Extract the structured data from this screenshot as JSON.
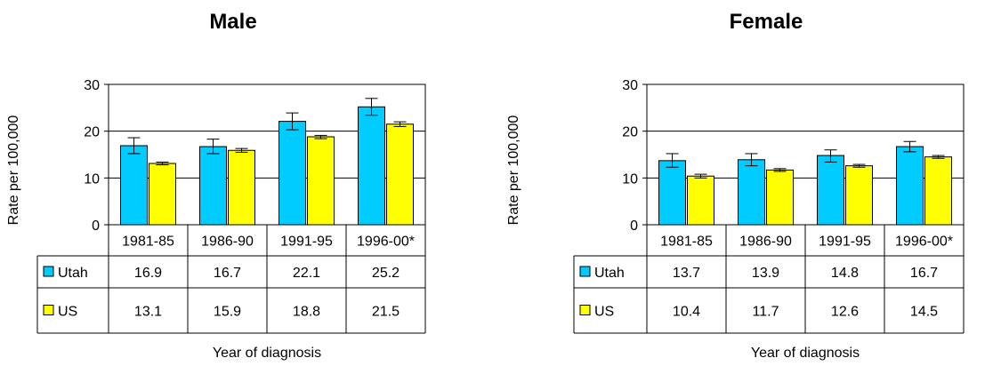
{
  "chart_data": [
    {
      "type": "bar",
      "title": "Male",
      "ylabel": "Rate per 100,000",
      "xlabel": "Year of diagnosis",
      "categories": [
        "1981-85",
        "1986-90",
        "1991-95",
        "1996-00*"
      ],
      "ylim": [
        0,
        30
      ],
      "yticks": [
        0,
        10,
        20,
        30
      ],
      "series": [
        {
          "name": "Utah",
          "color": "#00ccff",
          "values": [
            16.9,
            16.7,
            22.1,
            25.2
          ],
          "error_low": [
            15.2,
            15.2,
            20.3,
            23.4
          ],
          "error_high": [
            18.6,
            18.3,
            23.9,
            27.0
          ]
        },
        {
          "name": "US",
          "color": "#ffff00",
          "values": [
            13.1,
            15.9,
            18.8,
            21.5
          ],
          "error_low": [
            12.8,
            15.5,
            18.4,
            21.0
          ],
          "error_high": [
            13.4,
            16.3,
            19.1,
            22.0
          ]
        }
      ],
      "table": [
        {
          "label": "Utah",
          "cells": [
            "16.9",
            "16.7",
            "22.1",
            "25.2"
          ]
        },
        {
          "label": "US",
          "cells": [
            "13.1",
            "15.9",
            "18.8",
            "21.5"
          ]
        }
      ]
    },
    {
      "type": "bar",
      "title": "Female",
      "ylabel": "Rate per 100,000",
      "xlabel": "Year of diagnosis",
      "categories": [
        "1981-85",
        "1986-90",
        "1991-95",
        "1996-00*"
      ],
      "ylim": [
        0,
        30
      ],
      "yticks": [
        0,
        10,
        20,
        30
      ],
      "series": [
        {
          "name": "Utah",
          "color": "#00ccff",
          "values": [
            13.7,
            13.9,
            14.8,
            16.7
          ],
          "error_low": [
            12.3,
            12.6,
            13.4,
            15.6
          ],
          "error_high": [
            15.2,
            15.2,
            16.0,
            17.8
          ]
        },
        {
          "name": "US",
          "color": "#ffff00",
          "values": [
            10.4,
            11.7,
            12.6,
            14.5
          ],
          "error_low": [
            10.0,
            11.4,
            12.3,
            14.2
          ],
          "error_high": [
            10.8,
            12.0,
            12.9,
            14.8
          ]
        }
      ],
      "table": [
        {
          "label": "Utah",
          "cells": [
            "13.7",
            "13.9",
            "14.8",
            "16.7"
          ]
        },
        {
          "label": "US",
          "cells": [
            "10.4",
            "11.7",
            "12.6",
            "14.5"
          ]
        }
      ]
    }
  ]
}
